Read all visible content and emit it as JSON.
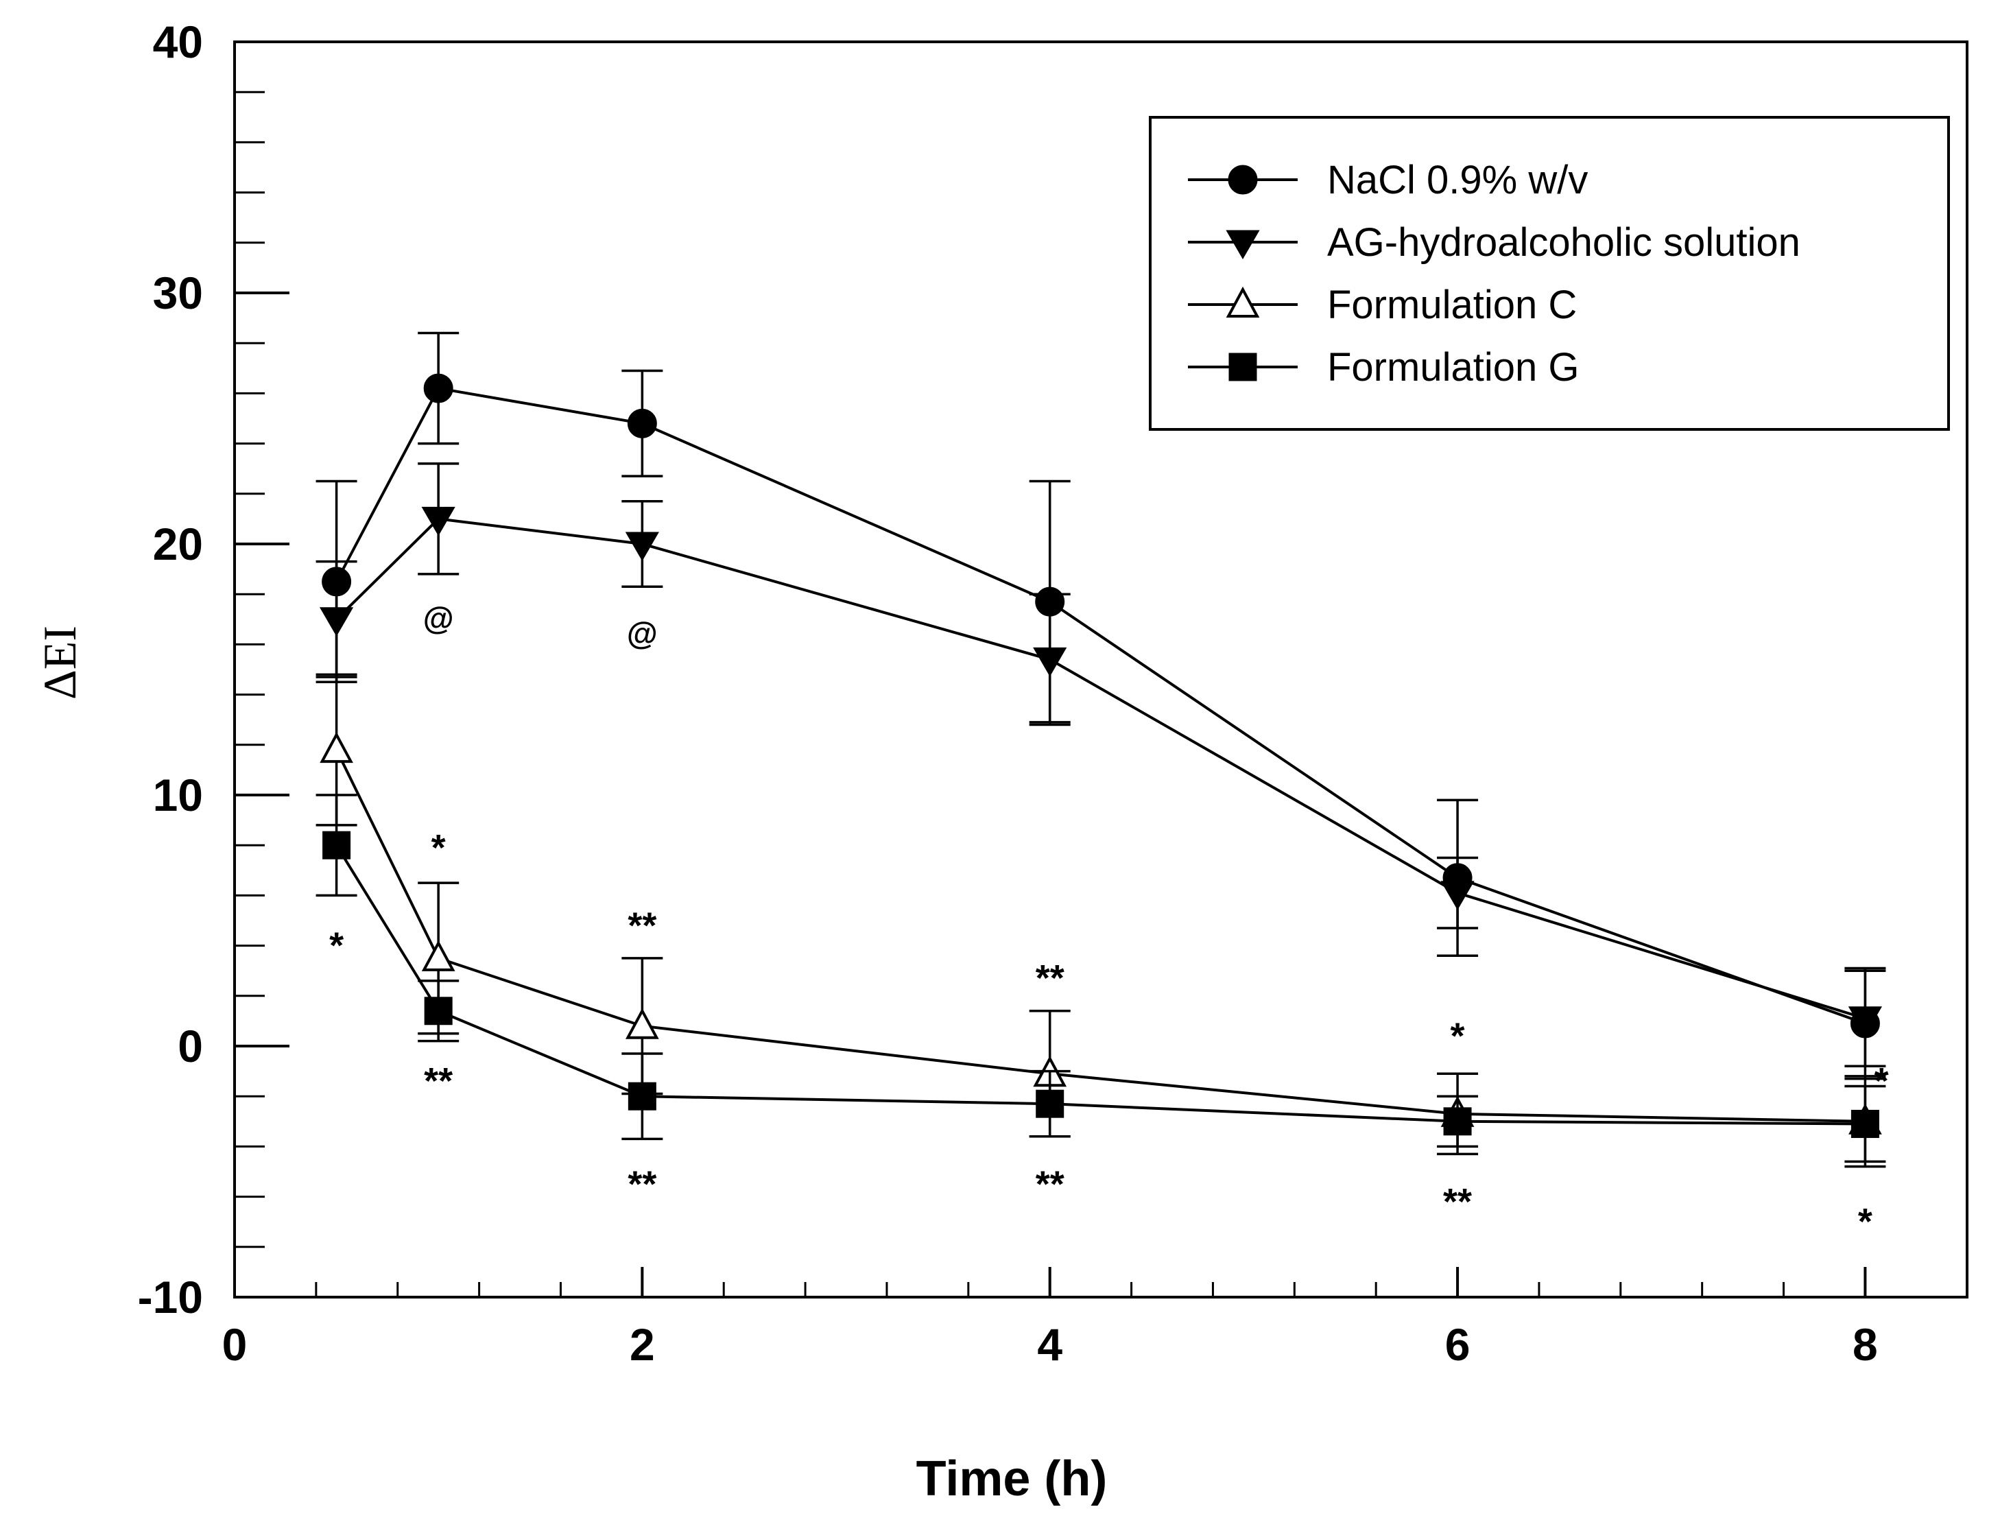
{
  "chart_data": {
    "type": "line",
    "title": "",
    "xlabel": "Time (h)",
    "ylabel": "ΔEI",
    "xlim": [
      0,
      8.5
    ],
    "ylim": [
      -10,
      40
    ],
    "xticks": [
      0,
      2,
      4,
      6,
      8
    ],
    "yticks": [
      -10,
      0,
      10,
      20,
      30,
      40
    ],
    "x_minor_step": 0.4,
    "y_minor_step": 2,
    "grid": false,
    "legend_position": "top-right",
    "x": [
      0.5,
      1,
      2,
      4,
      6,
      8
    ],
    "series": [
      {
        "name": "NaCl 0.9% w/v",
        "marker": "filled-circle",
        "values": [
          18.5,
          26.2,
          24.8,
          17.7,
          6.7,
          0.9
        ],
        "errors": [
          4.0,
          2.2,
          2.1,
          4.8,
          3.1,
          2.2
        ]
      },
      {
        "name": "AG-hydroalcoholic solution",
        "marker": "filled-triangle-down",
        "values": [
          17.0,
          21.0,
          20.0,
          15.4,
          6.1,
          1.1
        ],
        "errors": [
          2.3,
          2.2,
          1.7,
          2.6,
          1.4,
          1.9
        ]
      },
      {
        "name": "Formulation C",
        "marker": "open-triangle-up",
        "values": [
          11.8,
          3.5,
          0.8,
          -1.1,
          -2.7,
          -3.0
        ],
        "errors": [
          3.0,
          3.0,
          2.7,
          2.5,
          1.6,
          1.8
        ]
      },
      {
        "name": "Formulation G",
        "marker": "filled-square",
        "values": [
          8.0,
          1.4,
          -2.0,
          -2.3,
          -3.0,
          -3.1
        ],
        "errors": [
          2.0,
          1.2,
          1.7,
          1.3,
          1.0,
          1.5
        ]
      }
    ],
    "annotations": [
      {
        "text": "@",
        "x": 1,
        "y": 17.1
      },
      {
        "text": "@",
        "x": 2,
        "y": 16.5
      },
      {
        "text": "*",
        "x": 0.5,
        "y": 4.0
      },
      {
        "text": "*",
        "x": 1,
        "y": 7.9
      },
      {
        "text": "**",
        "x": 1,
        "y": -1.4
      },
      {
        "text": "**",
        "x": 2,
        "y": 4.8
      },
      {
        "text": "**",
        "x": 2,
        "y": -5.5
      },
      {
        "text": "**",
        "x": 4,
        "y": 2.7
      },
      {
        "text": "**",
        "x": 4,
        "y": -5.5
      },
      {
        "text": "*",
        "x": 6,
        "y": 0.4
      },
      {
        "text": "**",
        "x": 6,
        "y": -6.2
      },
      {
        "text": "*",
        "x": 8.08,
        "y": -1.4
      },
      {
        "text": "*",
        "x": 8,
        "y": -7.0
      }
    ]
  }
}
